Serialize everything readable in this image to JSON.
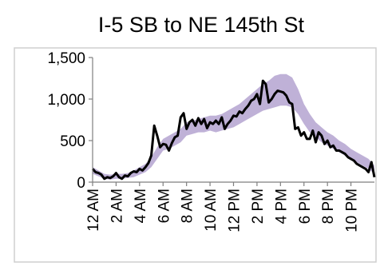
{
  "chart_data": {
    "type": "area",
    "title": "I-5 SB to NE 145th St",
    "xlabel": "",
    "ylabel": "",
    "ylim": [
      0,
      1500
    ],
    "yticks": [
      0,
      500,
      1000,
      1500
    ],
    "ytick_labels": [
      "0",
      "500",
      "1,000",
      "1,500"
    ],
    "xlim": [
      0,
      24
    ],
    "xticks": [
      0,
      2,
      4,
      6,
      8,
      10,
      12,
      14,
      16,
      18,
      20,
      22
    ],
    "xtick_labels": [
      "12 AM",
      "2 AM",
      "4 AM",
      "6 AM",
      "8 AM",
      "10 AM",
      "12 PM",
      "2 PM",
      "4 PM",
      "6 PM",
      "8 PM",
      "10 PM"
    ],
    "grid": false,
    "legend": "none",
    "colors": {
      "line": "#000000",
      "band": "#b8a9d3"
    },
    "series": [
      {
        "kind": "line",
        "x": [
          0,
          0.25,
          0.5,
          0.75,
          1,
          1.25,
          1.5,
          1.75,
          2,
          2.25,
          2.5,
          2.75,
          3,
          3.25,
          3.5,
          3.75,
          4,
          4.25,
          4.5,
          4.75,
          5,
          5.25,
          5.5,
          5.75,
          6,
          6.25,
          6.5,
          6.75,
          7,
          7.25,
          7.5,
          7.75,
          8,
          8.25,
          8.5,
          8.75,
          9,
          9.25,
          9.5,
          9.75,
          10,
          10.25,
          10.5,
          10.75,
          11,
          11.25,
          11.5,
          11.75,
          12,
          12.25,
          12.5,
          12.75,
          13,
          13.25,
          13.5,
          13.75,
          14,
          14.25,
          14.5,
          14.75,
          15,
          15.25,
          15.5,
          15.75,
          16,
          16.25,
          16.5,
          16.75,
          17,
          17.25,
          17.5,
          17.75,
          18,
          18.25,
          18.5,
          18.75,
          19,
          19.25,
          19.5,
          19.75,
          20,
          20.25,
          20.5,
          20.75,
          21,
          21.25,
          21.5,
          21.75,
          22,
          22.25,
          22.5,
          22.75,
          23,
          23.25,
          23.5,
          23.75,
          24
        ],
        "y": [
          160,
          120,
          110,
          90,
          40,
          60,
          50,
          70,
          110,
          60,
          40,
          80,
          70,
          110,
          130,
          120,
          160,
          140,
          180,
          230,
          320,
          680,
          560,
          420,
          460,
          450,
          380,
          470,
          540,
          560,
          780,
          830,
          640,
          720,
          750,
          680,
          770,
          700,
          760,
          650,
          720,
          700,
          740,
          700,
          780,
          640,
          700,
          740,
          800,
          790,
          850,
          830,
          880,
          920,
          980,
          1000,
          1060,
          940,
          1220,
          1180,
          960,
          1000,
          1060,
          1100,
          1090,
          1080,
          1040,
          960,
          940,
          640,
          660,
          560,
          600,
          520,
          520,
          620,
          480,
          600,
          560,
          460,
          500,
          420,
          440,
          380,
          380,
          360,
          340,
          300,
          280,
          260,
          220,
          200,
          180,
          160,
          120,
          240,
          60
        ]
      },
      {
        "kind": "band",
        "x": [
          0,
          0.5,
          1,
          1.5,
          2,
          2.5,
          3,
          3.5,
          4,
          4.5,
          5,
          5.5,
          6,
          6.5,
          7,
          7.5,
          8,
          8.5,
          9,
          9.5,
          10,
          10.5,
          11,
          11.5,
          12,
          12.5,
          13,
          13.5,
          14,
          14.5,
          15,
          15.5,
          16,
          16.5,
          17,
          17.5,
          18,
          18.5,
          19,
          19.5,
          20,
          20.5,
          21,
          21.5,
          22,
          22.5,
          23,
          23.5,
          24
        ],
        "low": [
          100,
          70,
          40,
          30,
          40,
          40,
          50,
          60,
          90,
          120,
          180,
          280,
          380,
          400,
          440,
          480,
          560,
          580,
          600,
          600,
          620,
          600,
          620,
          640,
          660,
          700,
          740,
          780,
          820,
          860,
          880,
          900,
          920,
          920,
          900,
          820,
          700,
          600,
          540,
          480,
          440,
          400,
          360,
          320,
          280,
          240,
          200,
          160,
          100
        ],
        "high": [
          180,
          140,
          100,
          90,
          100,
          100,
          110,
          140,
          180,
          220,
          300,
          420,
          520,
          560,
          600,
          640,
          720,
          740,
          760,
          780,
          800,
          800,
          820,
          860,
          900,
          940,
          1000,
          1060,
          1120,
          1180,
          1220,
          1280,
          1300,
          1300,
          1260,
          1120,
          940,
          820,
          720,
          660,
          600,
          560,
          500,
          460,
          400,
          360,
          320,
          280,
          200
        ]
      }
    ]
  }
}
